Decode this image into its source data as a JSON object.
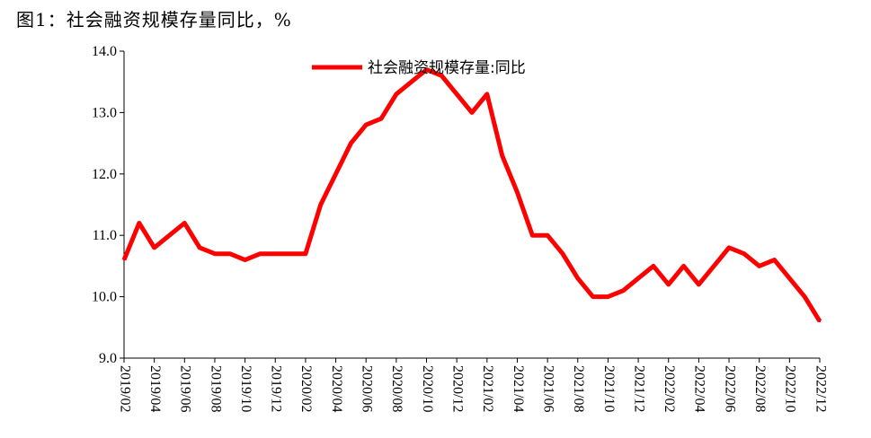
{
  "figure_title": "图1：社会融资规模存量同比，%",
  "chart_data": {
    "type": "line",
    "title": "图1：社会融资规模存量同比，%",
    "xlabel": "",
    "ylabel": "",
    "ylim": [
      9.0,
      14.0
    ],
    "yticks": [
      "9.0",
      "10.0",
      "11.0",
      "12.0",
      "13.0",
      "14.0"
    ],
    "x": [
      "2019/02",
      "2019/03",
      "2019/04",
      "2019/05",
      "2019/06",
      "2019/07",
      "2019/08",
      "2019/09",
      "2019/10",
      "2019/11",
      "2019/12",
      "2020/01",
      "2020/02",
      "2020/03",
      "2020/04",
      "2020/05",
      "2020/06",
      "2020/07",
      "2020/08",
      "2020/09",
      "2020/10",
      "2020/11",
      "2020/12",
      "2021/01",
      "2021/02",
      "2021/03",
      "2021/04",
      "2021/05",
      "2021/06",
      "2021/07",
      "2021/08",
      "2021/09",
      "2021/10",
      "2021/11",
      "2021/12",
      "2022/01",
      "2022/02",
      "2022/03",
      "2022/04",
      "2022/05",
      "2022/06",
      "2022/07",
      "2022/08",
      "2022/09",
      "2022/10",
      "2022/11",
      "2022/12"
    ],
    "xtick_labels": [
      "2019/02",
      "2019/04",
      "2019/06",
      "2019/08",
      "2019/10",
      "2019/12",
      "2020/02",
      "2020/04",
      "2020/06",
      "2020/08",
      "2020/10",
      "2020/12",
      "2021/02",
      "2021/04",
      "2021/06",
      "2021/08",
      "2021/10",
      "2021/12",
      "2022/02",
      "2022/04",
      "2022/06",
      "2022/08",
      "2022/10",
      "2022/12"
    ],
    "series": [
      {
        "name": "社会融资规模存量:同比",
        "color": "#ff0000",
        "values": [
          10.6,
          11.2,
          10.8,
          11.0,
          11.2,
          10.8,
          10.7,
          10.7,
          10.6,
          10.7,
          10.7,
          10.7,
          10.7,
          11.5,
          12.0,
          12.5,
          12.8,
          12.9,
          13.3,
          13.5,
          13.7,
          13.6,
          13.3,
          13.0,
          13.3,
          12.3,
          11.7,
          11.0,
          11.0,
          10.7,
          10.3,
          10.0,
          10.0,
          10.1,
          10.3,
          10.5,
          10.2,
          10.5,
          10.2,
          10.5,
          10.8,
          10.7,
          10.5,
          10.6,
          10.3,
          10.0,
          9.6
        ]
      }
    ],
    "legend_position": "top-center",
    "grid": false
  }
}
